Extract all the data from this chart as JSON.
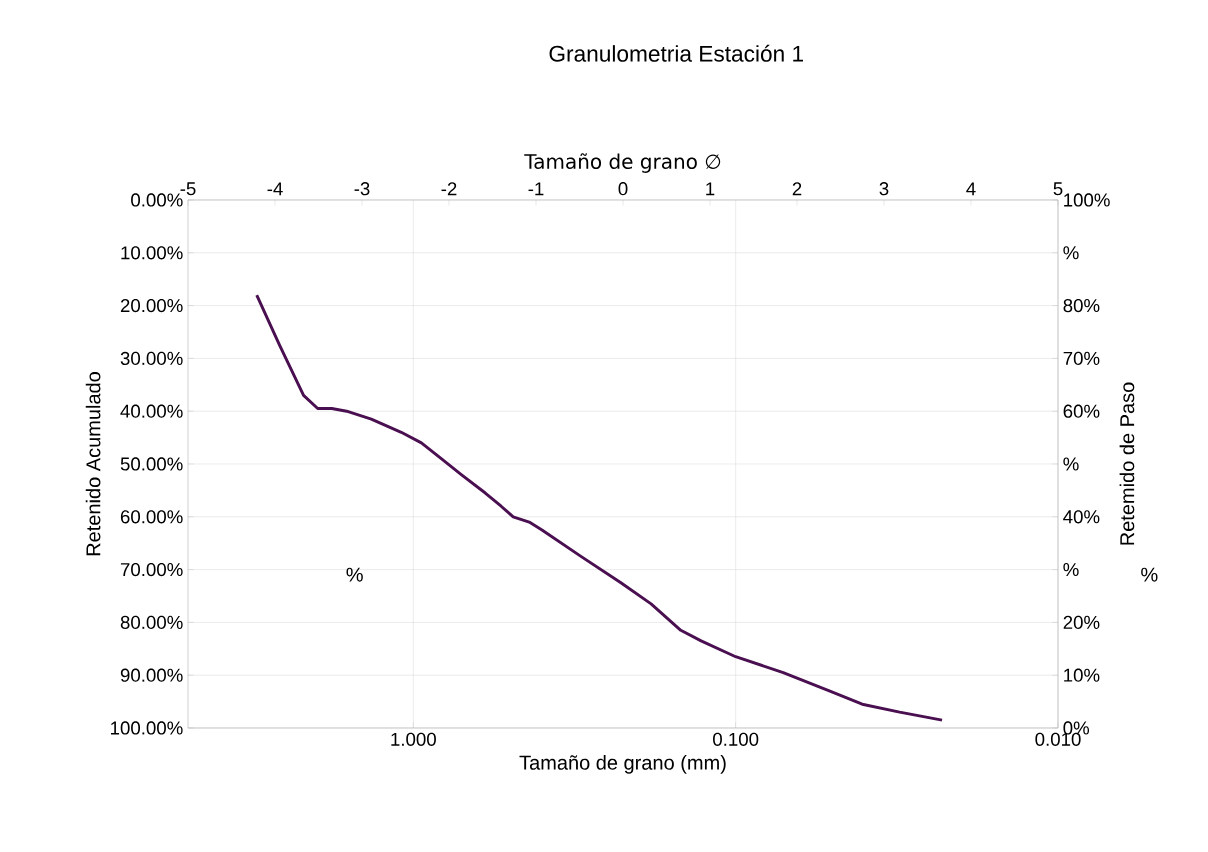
{
  "chart_data": {
    "type": "line",
    "title": "Granulometria Estación 1",
    "xlabel": "Tamaño de grano (mm)",
    "x2label": "Tamaño de grano ∅",
    "ylabel": "Retenido Acumulado",
    "y2label": "Retemido de Paso",
    "log": "x",
    "grid": true,
    "line_style": "solid",
    "xlim": [
      5,
      0.01
    ],
    "xticks": [
      {
        "value": 1,
        "label": "1.000"
      },
      {
        "value": 0.1,
        "label": "0.100"
      },
      {
        "value": 0.01,
        "label": "0.010"
      }
    ],
    "x2lim": [
      -5,
      5
    ],
    "x2ticks": [
      -5,
      -4,
      -3,
      -2,
      -1,
      0,
      1,
      2,
      3,
      4,
      5
    ],
    "ylim": [
      100,
      0
    ],
    "yticks": [
      {
        "value": 0,
        "label": "0.00%"
      },
      {
        "value": 10,
        "label": "10.00%"
      },
      {
        "value": 20,
        "label": "20.00%"
      },
      {
        "value": 30,
        "label": "30.00%"
      },
      {
        "value": 40,
        "label": "40.00%"
      },
      {
        "value": 50,
        "label": "50.00%"
      },
      {
        "value": 60,
        "label": "60.00%"
      },
      {
        "value": 70,
        "label": "70.00%"
      },
      {
        "value": 80,
        "label": "80.00%"
      },
      {
        "value": 90,
        "label": "90.00%"
      },
      {
        "value": 100,
        "label": "100.00%"
      }
    ],
    "y2lim": [
      0,
      100
    ],
    "y2ticks": [
      {
        "value": 100,
        "label": "100%"
      },
      {
        "value": 90,
        "label": "%"
      },
      {
        "value": 80,
        "label": "80%"
      },
      {
        "value": 70,
        "label": "70%"
      },
      {
        "value": 60,
        "label": "60%"
      },
      {
        "value": 50,
        "label": "%"
      },
      {
        "value": 40,
        "label": "40%"
      },
      {
        "value": 30,
        "label": "%"
      },
      {
        "value": 20,
        "label": "20%"
      },
      {
        "value": 10,
        "label": "10%"
      },
      {
        "value": 0,
        "label": "0%"
      }
    ],
    "annotations": [
      "%",
      "%"
    ],
    "series": [
      {
        "color": "#4a0f50",
        "x": [
          3.06,
          2.6,
          2.19,
          1.98,
          1.79,
          1.61,
          1.35,
          1.09,
          0.944,
          0.819,
          0.71,
          0.598,
          0.534,
          0.49,
          0.437,
          0.399,
          0.302,
          0.227,
          0.183,
          0.148,
          0.128,
          0.1,
          0.0712,
          0.051,
          0.0405,
          0.031,
          0.0229
        ],
        "values": [
          18,
          27.5,
          37,
          39.5,
          39.5,
          40,
          41.5,
          44,
          46,
          49,
          52,
          55.5,
          58,
          60,
          61,
          62.5,
          67.5,
          72.5,
          76.5,
          81.5,
          83.5,
          86.5,
          89.5,
          93,
          95.5,
          97,
          98.5
        ]
      }
    ]
  }
}
